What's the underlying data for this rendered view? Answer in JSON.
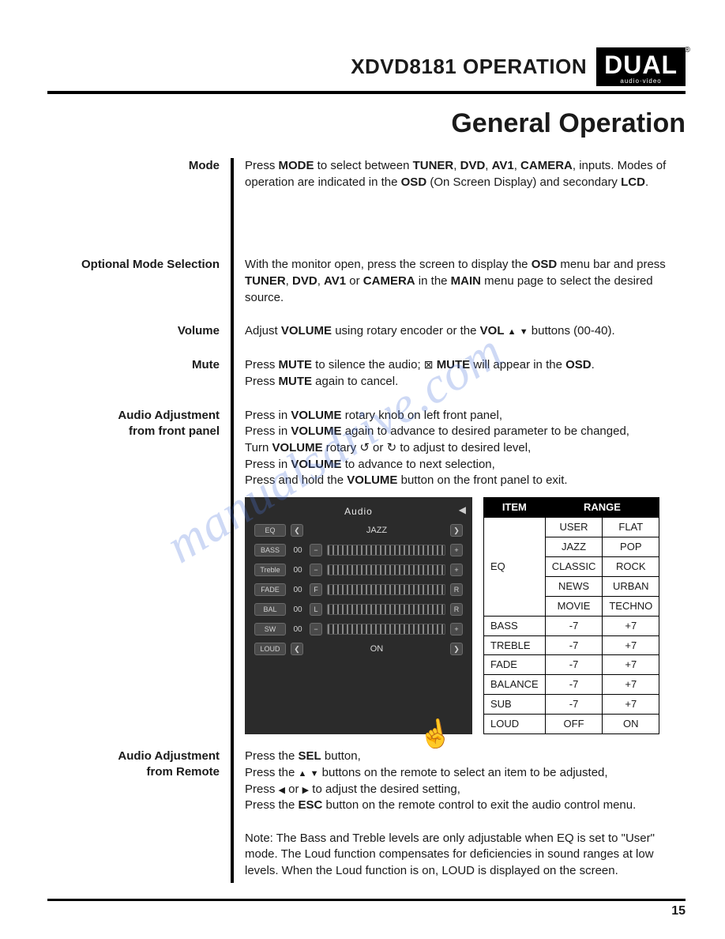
{
  "header": {
    "title": "XDVD8181 OPERATION",
    "logo_main": "DUAL",
    "logo_sub": "audio·video"
  },
  "page_title": "General Operation",
  "sections": {
    "mode": {
      "label": "Mode",
      "text_pre": "Press ",
      "b1": "MODE",
      "t2": " to select between ",
      "b2": "TUNER",
      "b3": "DVD",
      "b4": "AV1",
      "b5": "CAMERA",
      "t3": ", inputs. Modes of operation are indicated in the ",
      "b6": "OSD",
      "t4": " (On Screen Display) and secondary ",
      "b7": "LCD",
      "t5": "."
    },
    "optional": {
      "label": "Optional Mode Selection",
      "t1": "With the monitor open, press the screen to display the ",
      "b1": "OSD",
      "t2": " menu bar and press ",
      "b2": "TUNER",
      "b3": "DVD",
      "b4": "AV1",
      "t3": " or ",
      "b5": "CAMERA",
      "t4": " in the ",
      "b6": "MAIN",
      "t5": " menu page to select the desired source."
    },
    "volume": {
      "label": "Volume",
      "t1": "Adjust ",
      "b1": "VOLUME",
      "t2": " using rotary encoder or the ",
      "b2": "VOL",
      "t3": " buttons (00-40)."
    },
    "mute": {
      "label": "Mute",
      "t1": "Press ",
      "b1": "MUTE",
      "t2": " to silence the audio; ",
      "b2": "MUTE",
      "t3": " will appear in the ",
      "b3": "OSD",
      "t4": ".",
      "t5": "Press ",
      "b4": "MUTE",
      "t6": " again to cancel."
    },
    "audio_panel": {
      "label1": "Audio Adjustment",
      "label2": "from front panel",
      "l1a": "Press in ",
      "l1b": "VOLUME",
      "l1c": " rotary knob on left front panel,",
      "l2a": "Press in ",
      "l2b": "VOLUME",
      "l2c": " again to advance to desired parameter to be changed,",
      "l3a": "Turn ",
      "l3b": "VOLUME",
      "l3c": " rotary ",
      "l3d": "   or   ",
      "l3e": "   to adjust to desired level,",
      "l4a": "Press in ",
      "l4b": "VOLUME",
      "l4c": "  to advance to next selection,",
      "l5a": "Press and hold the ",
      "l5b": "VOLUME",
      "l5c": " button on the front panel to exit."
    },
    "audio_remote": {
      "label1": "Audio Adjustment",
      "label2": "from Remote",
      "l1a": "Press the ",
      "l1b": "SEL",
      "l1c": " button,",
      "l2a": "Press the ",
      "l2b": " buttons on the remote to select an item to be adjusted,",
      "l3a": "Press ",
      "l3b": " or ",
      "l3c": " to adjust the desired setting,",
      "l4a": "Press the ",
      "l4b": "ESC",
      "l4c": " button on the remote control to exit the audio control menu.",
      "note": "Note: The Bass and Treble levels are only adjustable when EQ is set to \"User\" mode. The Loud function compensates for deficiencies in sound ranges at low levels. When the Loud function is on, LOUD is displayed on the screen."
    }
  },
  "osd": {
    "title": "Audio",
    "rows": [
      {
        "label": "EQ",
        "left": "❮",
        "center": "JAZZ",
        "right": "❯",
        "type": "nav"
      },
      {
        "label": "BASS",
        "num": "00",
        "left": "−",
        "right": "+",
        "type": "bar"
      },
      {
        "label": "Treble",
        "num": "00",
        "left": "−",
        "right": "+",
        "type": "bar"
      },
      {
        "label": "FADE",
        "num": "00",
        "left": "F",
        "right": "R",
        "type": "bar"
      },
      {
        "label": "BAL",
        "num": "00",
        "left": "L",
        "right": "R",
        "type": "bar"
      },
      {
        "label": "SW",
        "num": "00",
        "left": "−",
        "right": "+",
        "type": "bar"
      },
      {
        "label": "LOUD",
        "left": "❮",
        "center": "ON",
        "right": "❯",
        "type": "nav"
      }
    ]
  },
  "range_table": {
    "headers": [
      "ITEM",
      "RANGE"
    ],
    "eq_label": "EQ",
    "eq_rows": [
      [
        "USER",
        "FLAT"
      ],
      [
        "JAZZ",
        "POP"
      ],
      [
        "CLASSIC",
        "ROCK"
      ],
      [
        "NEWS",
        "URBAN"
      ],
      [
        "MOVIE",
        "TECHNO"
      ]
    ],
    "rows": [
      [
        "BASS",
        "-7",
        "+7"
      ],
      [
        "TREBLE",
        "-7",
        "+7"
      ],
      [
        "FADE",
        "-7",
        "+7"
      ],
      [
        "BALANCE",
        "-7",
        "+7"
      ],
      [
        "SUB",
        "-7",
        "+7"
      ],
      [
        "LOUD",
        "OFF",
        "ON"
      ]
    ]
  },
  "watermark": "manualsdrive.com",
  "page_number": "15"
}
